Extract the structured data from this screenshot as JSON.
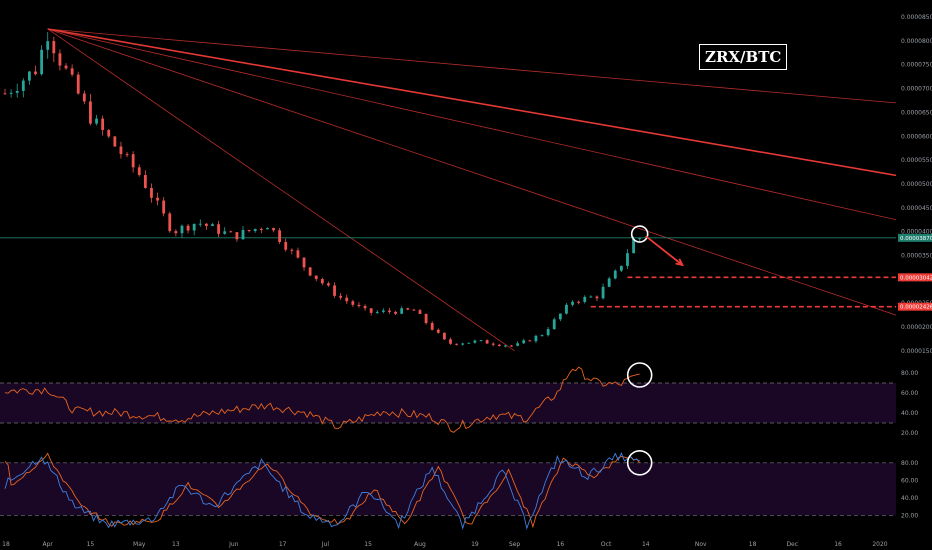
{
  "pair_label": "ZRX/BTC",
  "colors": {
    "background": "#000000",
    "up": "#26a69a",
    "down": "#ef5350",
    "trendline": "#e53935",
    "annotation": "#ef3b36",
    "indicator_band": "#2b0a3d",
    "rsi_line": "#e8641e",
    "stoch_k": "#3f7fe0",
    "stoch_d": "#e8641e",
    "current_price_line": "#1e7f6e",
    "circle": "#ffffff"
  },
  "x_axis": {
    "labels": [
      "18",
      "Apr",
      "15",
      "May",
      "13",
      "Jun",
      "17",
      "Jul",
      "15",
      "Aug",
      "19",
      "Sep",
      "16",
      "Oct",
      "14",
      "Nov",
      "18",
      "Dec",
      "16",
      "2020"
    ]
  },
  "y_axis": {
    "labels": [
      "0.00008500",
      "0.00008000",
      "0.00007500",
      "0.00007000",
      "0.00006500",
      "0.00006000",
      "0.00005500",
      "0.00005000",
      "0.00004500",
      "0.00004000",
      "0.00003500",
      "0.00003000",
      "0.00002500",
      "0.00002000",
      "0.00001500"
    ]
  },
  "price_tags": [
    {
      "label": "0.00003870",
      "color": "#1e7f6e"
    },
    {
      "label": "0.00003042",
      "color": "#ef3b36"
    },
    {
      "label": "0.00002426",
      "color": "#ef3b36"
    }
  ],
  "rsi_axis": {
    "labels": [
      "80.00",
      "60.00",
      "40.00",
      "20.00"
    ]
  },
  "stoch_axis": {
    "labels": [
      "80.00",
      "60.00",
      "40.00",
      "20.00"
    ]
  },
  "chart_data": {
    "type": "candlestick",
    "title": "ZRX/BTC",
    "y_unit": "BTC",
    "ylim": [
      1.35e-05,
      8.69e-05
    ],
    "x_range": [
      "2019-03-18",
      "2020-01-04"
    ],
    "candle_interval_days": 2,
    "ohlc_path": [
      [
        "2019-03-18",
        6.9e-05
      ],
      [
        "2019-03-28",
        7.4e-05
      ],
      [
        "2019-04-01",
        8.18e-05
      ],
      [
        "2019-04-05",
        7.6e-05
      ],
      [
        "2019-04-15",
        6.4e-05
      ],
      [
        "2019-05-01",
        5.2e-05
      ],
      [
        "2019-05-12",
        4e-05
      ],
      [
        "2019-05-20",
        4.2e-05
      ],
      [
        "2019-06-01",
        3.9e-05
      ],
      [
        "2019-06-12",
        4.15e-05
      ],
      [
        "2019-06-25",
        3.2e-05
      ],
      [
        "2019-07-05",
        2.65e-05
      ],
      [
        "2019-07-15",
        2.3e-05
      ],
      [
        "2019-07-30",
        2.35e-05
      ],
      [
        "2019-08-10",
        1.65e-05
      ],
      [
        "2019-08-20",
        1.7e-05
      ],
      [
        "2019-09-01",
        1.6e-05
      ],
      [
        "2019-09-10",
        1.85e-05
      ],
      [
        "2019-09-20",
        2.55e-05
      ],
      [
        "2019-09-28",
        2.65e-05
      ],
      [
        "2019-10-05",
        3.2e-05
      ],
      [
        "2019-10-11",
        3.95e-05
      ],
      [
        "2019-10-12",
        3.87e-05
      ]
    ],
    "current_price": 3.87e-05,
    "support_levels": [
      3.042e-05,
      2.426e-05
    ],
    "trendlines_from": [
      "2019-04-01",
      8.25e-05
    ],
    "trendlines_to": [
      [
        "2020-01-04",
        6.7e-05
      ],
      [
        "2020-01-04",
        5.18e-05
      ],
      [
        "2020-01-04",
        4.25e-05
      ],
      [
        "2020-01-04",
        2.25e-05
      ],
      [
        "2019-09-01",
        1.5e-05
      ]
    ],
    "projection_arrow": [
      [
        "2019-10-12",
        3.95e-05
      ],
      [
        "2019-10-26",
        3.3e-05
      ]
    ],
    "rsi": {
      "ylim": [
        12,
        98
      ],
      "bands": [
        70,
        30
      ],
      "path": [
        [
          "2019-03-18",
          62
        ],
        [
          "2019-04-01",
          64
        ],
        [
          "2019-04-10",
          42
        ],
        [
          "2019-04-25",
          40
        ],
        [
          "2019-05-15",
          34
        ],
        [
          "2019-05-25",
          40
        ],
        [
          "2019-06-12",
          48
        ],
        [
          "2019-06-25",
          40
        ],
        [
          "2019-07-05",
          26
        ],
        [
          "2019-07-20",
          42
        ],
        [
          "2019-08-05",
          36
        ],
        [
          "2019-08-12",
          25
        ],
        [
          "2019-08-25",
          38
        ],
        [
          "2019-09-05",
          35
        ],
        [
          "2019-09-15",
          60
        ],
        [
          "2019-09-20",
          86
        ],
        [
          "2019-09-28",
          70
        ],
        [
          "2019-10-05",
          68
        ],
        [
          "2019-10-12",
          78
        ]
      ]
    },
    "stoch": {
      "ylim": [
        0,
        98
      ],
      "bands": [
        80,
        20
      ],
      "k_path": [
        [
          "2019-03-18",
          55
        ],
        [
          "2019-03-30",
          88
        ],
        [
          "2019-04-10",
          30
        ],
        [
          "2019-04-20",
          10
        ],
        [
          "2019-05-05",
          15
        ],
        [
          "2019-05-15",
          55
        ],
        [
          "2019-05-25",
          30
        ],
        [
          "2019-06-10",
          80
        ],
        [
          "2019-06-25",
          20
        ],
        [
          "2019-07-05",
          10
        ],
        [
          "2019-07-15",
          50
        ],
        [
          "2019-07-25",
          10
        ],
        [
          "2019-08-05",
          75
        ],
        [
          "2019-08-15",
          8
        ],
        [
          "2019-08-28",
          70
        ],
        [
          "2019-09-05",
          10
        ],
        [
          "2019-09-15",
          85
        ],
        [
          "2019-09-25",
          65
        ],
        [
          "2019-10-05",
          88
        ],
        [
          "2019-10-12",
          80
        ]
      ]
    },
    "circled_points": [
      "price_high_2019-10-12",
      "rsi_2019-10-12",
      "stoch_2019-10-12"
    ]
  }
}
